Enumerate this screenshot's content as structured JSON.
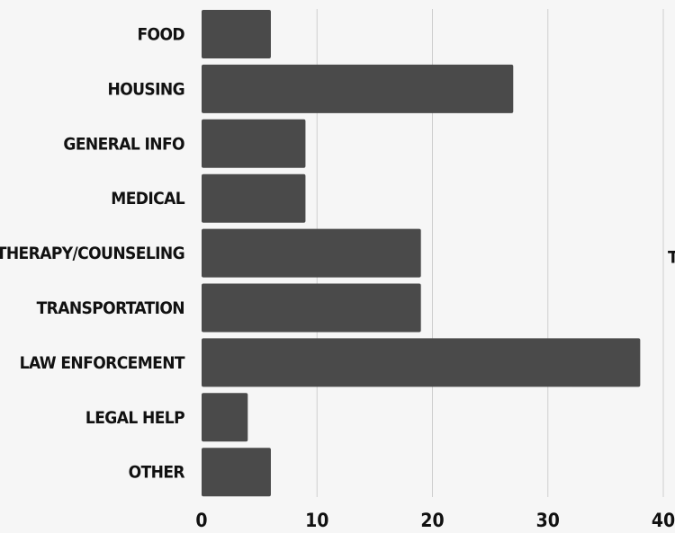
{
  "chart_data": {
    "type": "bar",
    "orientation": "horizontal",
    "categories": [
      "FOOD",
      "HOUSING",
      "GENERAL INFO",
      "MEDICAL",
      "THERAPY/COUNSELING",
      "TRANSPORTATION",
      "LAW ENFORCEMENT",
      "LEGAL HELP",
      "OTHER"
    ],
    "values": [
      6,
      27,
      9,
      9,
      19,
      19,
      38,
      4,
      6
    ],
    "xlim": [
      0,
      40
    ],
    "xticks": [
      0,
      10,
      20,
      30,
      40
    ],
    "xtick_labels": [
      "0",
      "10",
      "20",
      "30",
      "40"
    ],
    "grid": "vertical",
    "bar_color": "#4a4a4a",
    "grid_color": "#cfcfcf",
    "background": "#f6f6f6",
    "edge_text": "T"
  }
}
